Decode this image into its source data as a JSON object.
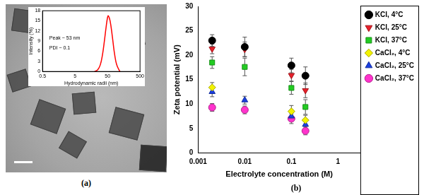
{
  "chart_data": [
    {
      "type": "line",
      "title": "(a)",
      "x_label": "Hydrodynamic radii (nm)",
      "y_label": "Intensity (%)",
      "annotations": [
        "Peak ~ 53 nm",
        "PDI ~ 0.1"
      ],
      "x": [
        20,
        25,
        30,
        35,
        40,
        45,
        50,
        53,
        60,
        70,
        80,
        90,
        100,
        120
      ],
      "series": [
        {
          "color": "#ff0000",
          "values": [
            0,
            0.5,
            2,
            5,
            9,
            13,
            16,
            16.5,
            15,
            10.5,
            6,
            3,
            1.5,
            0
          ]
        }
      ],
      "log": "x",
      "xlim": [
        0.5,
        500
      ],
      "xticks": [
        0.5,
        5,
        50,
        500
      ],
      "ylim": [
        0,
        18
      ],
      "yticks": [
        0,
        3,
        6,
        9,
        12,
        15,
        18
      ],
      "grid": false
    },
    {
      "type": "scatter",
      "title": "(b)",
      "x_label": "Electrolyte concentration (M)",
      "y_label": "Zeta potential (mV)",
      "x": [
        0.002,
        0.01,
        0.1,
        0.2
      ],
      "series": [
        {
          "name": "KCl, 4°C",
          "color": "#000000",
          "marker": "circle",
          "values": [
            23,
            21.7,
            17.9,
            15.8
          ],
          "errors": [
            1.2,
            2.0,
            1.5,
            1.8
          ]
        },
        {
          "name": "KCl, 25°C",
          "color": "#e8202a",
          "marker": "triangle-down",
          "values": [
            21.3,
            21.2,
            15.9,
            12.8
          ],
          "errors": [
            1.0,
            1.5,
            1.2,
            1.5
          ]
        },
        {
          "name": "KCl, 37°C",
          "color": "#22cc22",
          "marker": "square",
          "values": [
            18.5,
            17.6,
            13.3,
            9.4
          ],
          "errors": [
            1.2,
            1.8,
            1.3,
            1.5
          ]
        },
        {
          "name": "CaCl₂, 4°C",
          "color": "#f2f200",
          "marker": "diamond",
          "values": [
            13.4,
            null,
            8.5,
            6.7
          ],
          "errors": [
            1.0,
            null,
            1.2,
            1.0
          ]
        },
        {
          "name": "CaCl₂, 25°C",
          "color": "#1a3fe0",
          "marker": "triangle",
          "values": [
            12.5,
            10.8,
            7.5,
            5.8
          ],
          "errors": [
            1.0,
            0.8,
            1.0,
            1.0
          ]
        },
        {
          "name": "CaCl₂, 37°C",
          "color": "#ff33cc",
          "marker": "circle",
          "values": [
            9.3,
            8.8,
            7.0,
            4.5
          ],
          "errors": [
            0.8,
            0.8,
            1.0,
            0.8
          ]
        }
      ],
      "log": "x",
      "xlim": [
        0.001,
        3
      ],
      "xticks": [
        0.001,
        0.01,
        0.1,
        1
      ],
      "ylim": [
        0,
        30
      ],
      "yticks": [
        0,
        5,
        10,
        15,
        20,
        25,
        30
      ],
      "legend": "right",
      "grid": false
    }
  ]
}
